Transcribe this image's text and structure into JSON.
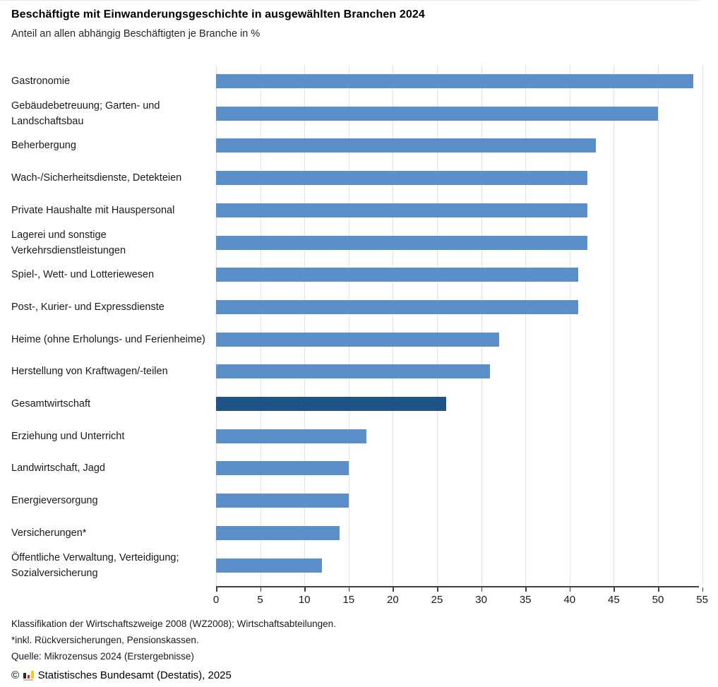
{
  "chart_data": {
    "type": "bar",
    "orientation": "horizontal",
    "title": "Beschäftigte mit Einwanderungsgeschichte in ausgewählten Branchen 2024",
    "subtitle": "Anteil an allen abhängig Beschäftigten je Branche in %",
    "categories": [
      "Gastronomie",
      "Gebäudebetreuung; Garten- und Landschaftsbau",
      "Beherbergung",
      "Wach-/Sicherheitsdienste, Detekteien",
      "Private Haushalte mit Hauspersonal",
      "Lagerei und sonstige Verkehrsdienstleistungen",
      "Spiel-, Wett- und Lotteriewesen",
      "Post-, Kurier- und Expressdienste",
      "Heime (ohne Erholungs- und Ferienheime)",
      "Herstellung von Kraftwagen/-teilen",
      "Gesamtwirtschaft",
      "Erziehung und Unterricht",
      "Landwirtschaft, Jagd",
      "Energieversorgung",
      "Versicherungen*",
      "Öffentliche Verwaltung, Verteidigung; Sozialversicherung"
    ],
    "values": [
      54,
      50,
      43,
      42,
      42,
      42,
      41,
      41,
      32,
      31,
      26,
      17,
      15,
      15,
      14,
      12
    ],
    "highlight_index": 10,
    "highlight_category": "Gesamtwirtschaft",
    "xlabel": "",
    "ylabel": "",
    "xlim": [
      0,
      55
    ],
    "x_ticks": [
      0,
      5,
      10,
      15,
      20,
      25,
      30,
      35,
      40,
      45,
      50,
      55
    ],
    "grid": "vertical-light",
    "legend": "none",
    "colors": {
      "bar": "#5B8FC9",
      "bar_highlight": "#1F5285",
      "gridline": "#E3E3E3",
      "axis": "#3F3F3F"
    }
  },
  "footnotes": {
    "line1": "Klassifikation der Wirtschaftszweige 2008 (WZ2008); Wirtschaftsabteilungen.",
    "line2": "*inkl. Rückversicherungen, Pensionskassen.",
    "line3": "Quelle: Mikrozensus 2024 (Erstergebnisse)"
  },
  "copyright": {
    "symbol": "©",
    "text": "Statistisches Bundesamt (Destatis), 2025",
    "logo_icon": "destatis-mini-barchart",
    "logo_colors": {
      "navy": "#1B2A4A",
      "red": "#D2232A",
      "yellow": "#FFCC00"
    }
  }
}
